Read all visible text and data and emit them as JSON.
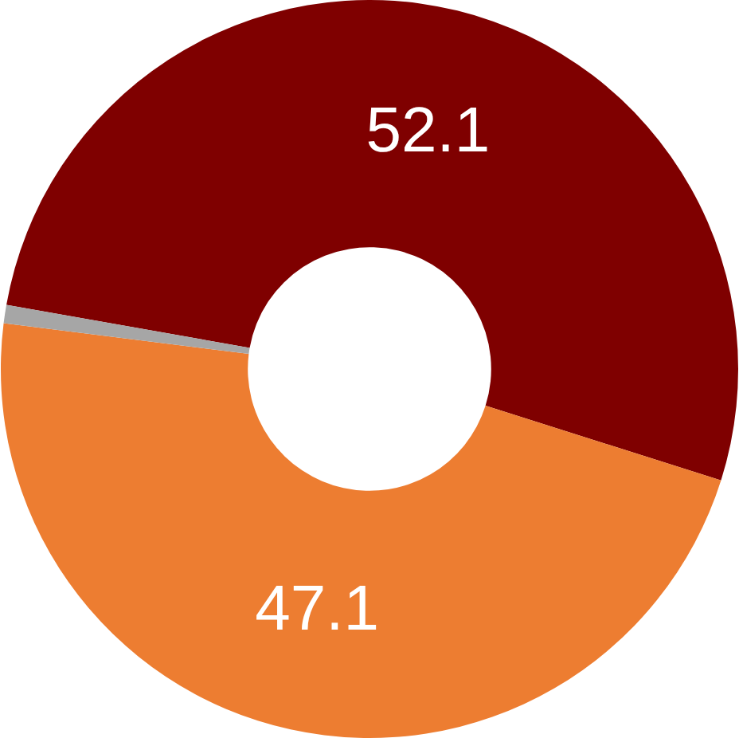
{
  "chart_data": {
    "type": "donut",
    "categories": [
      null,
      null,
      null
    ],
    "values": [
      52.1,
      47.1,
      0.8
    ],
    "colors": [
      "#7f0000",
      "#ed7d31",
      "#a6a6a6"
    ],
    "value_labels": [
      "52.1",
      "47.1",
      null
    ],
    "legend": false
  }
}
